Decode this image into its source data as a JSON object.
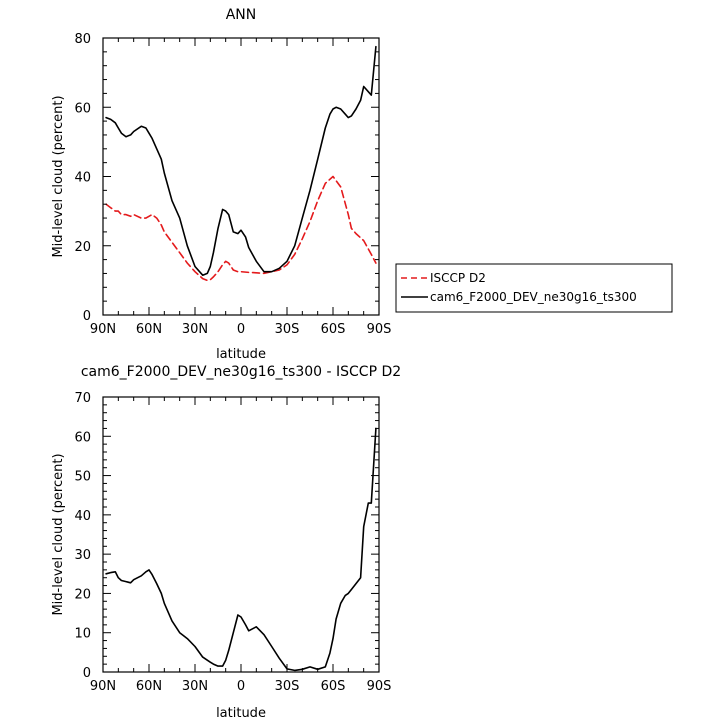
{
  "chart_data": [
    {
      "type": "line",
      "title": "ANN",
      "xlabel": "latitude",
      "ylabel": "Mid-level cloud (percent)",
      "xlim": [
        90,
        -90
      ],
      "ylim": [
        0,
        80
      ],
      "x_ticks": [
        90,
        60,
        30,
        0,
        -30,
        -60,
        -90
      ],
      "x_tick_labels": [
        "90N",
        "60N",
        "30N",
        "0",
        "30S",
        "60S",
        "90S"
      ],
      "y_ticks": [
        0,
        20,
        40,
        60,
        80
      ],
      "y_tick_labels": [
        "0",
        "20",
        "40",
        "60",
        "80"
      ],
      "legend_position": "right",
      "series": [
        {
          "name": "ISCCP D2",
          "color": "#e41a1c",
          "dash": "dashed",
          "x": [
            88,
            85,
            82,
            80,
            78,
            75,
            72,
            70,
            65,
            62,
            60,
            58,
            55,
            52,
            50,
            45,
            40,
            35,
            30,
            25,
            22,
            20,
            18,
            15,
            12,
            10,
            8,
            5,
            2,
            0,
            -5,
            -10,
            -15,
            -20,
            -25,
            -30,
            -35,
            -40,
            -45,
            -50,
            -55,
            -60,
            -65,
            -70,
            -72,
            -75,
            -80,
            -85,
            -88
          ],
          "y": [
            32,
            31,
            30,
            30,
            29,
            29,
            28.5,
            29,
            28,
            28,
            28.5,
            29,
            28,
            26,
            24,
            21,
            18,
            15,
            12.5,
            10.5,
            10,
            10.2,
            11,
            12.5,
            14.5,
            15.5,
            15,
            13,
            12.5,
            12.5,
            12.3,
            12.2,
            12,
            12.5,
            13,
            14.5,
            17.5,
            22,
            27,
            33,
            38,
            40,
            37,
            29,
            25,
            23.5,
            21.5,
            17.5,
            15
          ]
        },
        {
          "name": "cam6_F2000_DEV_ne30g16_ts300",
          "color": "#000000",
          "dash": "solid",
          "x": [
            88,
            85,
            82,
            80,
            78,
            75,
            72,
            70,
            65,
            62,
            60,
            58,
            55,
            52,
            50,
            45,
            40,
            35,
            30,
            25,
            22,
            20,
            18,
            15,
            12,
            10,
            8,
            5,
            2,
            0,
            -3,
            -5,
            -10,
            -15,
            -20,
            -25,
            -30,
            -35,
            -40,
            -45,
            -50,
            -55,
            -58,
            -60,
            -62,
            -65,
            -68,
            -70,
            -72,
            -75,
            -78,
            -80,
            -83,
            -85,
            -88
          ],
          "y": [
            57,
            56.5,
            55.5,
            54,
            52.5,
            51.5,
            52,
            53,
            54.5,
            54,
            52.5,
            51,
            48,
            45,
            41,
            33,
            28,
            20,
            14,
            11.5,
            12,
            14,
            18,
            25,
            30.5,
            30,
            29,
            24,
            23.5,
            24.5,
            22.5,
            19.5,
            15.5,
            12.5,
            12.5,
            13.5,
            15.5,
            20,
            28,
            36,
            45,
            54,
            58,
            59.5,
            60,
            59.5,
            58,
            57,
            57.5,
            59.5,
            62,
            66,
            64.5,
            63.5,
            77.5
          ]
        }
      ]
    },
    {
      "type": "line",
      "title": "cam6_F2000_DEV_ne30g16_ts300 - ISCCP D2",
      "xlabel": "latitude",
      "ylabel": "Mid-level cloud (percent)",
      "xlim": [
        90,
        -90
      ],
      "ylim": [
        0,
        70
      ],
      "x_ticks": [
        90,
        60,
        30,
        0,
        -30,
        -60,
        -90
      ],
      "x_tick_labels": [
        "90N",
        "60N",
        "30N",
        "0",
        "30S",
        "60S",
        "90S"
      ],
      "y_ticks": [
        0,
        10,
        20,
        30,
        40,
        50,
        60,
        70
      ],
      "y_tick_labels": [
        "0",
        "10",
        "20",
        "30",
        "40",
        "50",
        "60",
        "70"
      ],
      "series": [
        {
          "color": "#000000",
          "dash": "solid",
          "x": [
            88,
            85,
            82,
            80,
            78,
            75,
            72,
            70,
            65,
            62,
            60,
            58,
            55,
            52,
            50,
            45,
            40,
            35,
            30,
            25,
            22,
            20,
            18,
            15,
            12,
            10,
            8,
            5,
            2,
            0,
            -3,
            -5,
            -10,
            -15,
            -20,
            -25,
            -30,
            -35,
            -40,
            -45,
            -50,
            -55,
            -58,
            -60,
            -62,
            -65,
            -68,
            -70,
            -72,
            -75,
            -78,
            -80,
            -83,
            -85,
            -88
          ],
          "y": [
            25,
            25.3,
            25.5,
            24,
            23.3,
            23,
            22.7,
            23.5,
            24.5,
            25.5,
            26,
            24.8,
            22.5,
            20,
            17.5,
            13,
            10,
            8.5,
            6.5,
            3.8,
            3,
            2.5,
            2,
            1.5,
            1.5,
            3,
            5.5,
            10,
            14.5,
            14,
            12,
            10.5,
            11.5,
            9.5,
            6.5,
            3.5,
            0.8,
            0.4,
            0.7,
            1.3,
            0.7,
            1.3,
            4.8,
            8.5,
            13.5,
            17.5,
            19.5,
            20,
            21,
            22.5,
            24,
            37,
            43,
            43,
            62
          ]
        }
      ]
    }
  ]
}
